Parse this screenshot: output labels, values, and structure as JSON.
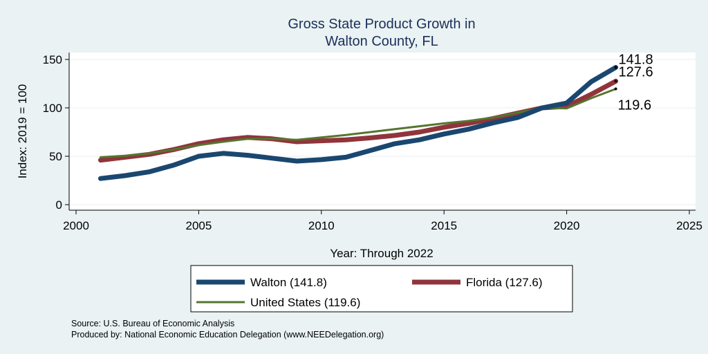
{
  "colors": {
    "background": "#eaf2f3",
    "plot_background": "#ffffff",
    "title": "#1a2f5a",
    "grid": "#e8eef0",
    "walton": "#1a476f",
    "florida": "#90353b",
    "united_states": "#55752f"
  },
  "footer": {
    "source": "Source: U.S. Bureau of Economic Analysis",
    "produced": "Produced by: National Economic Education Delegation (www.NEEDelegation.org)"
  },
  "chart_data": {
    "type": "line",
    "title": "Gross State Product Growth in",
    "subtitle": "Walton County, FL",
    "xlabel": "Year: Through 2022",
    "ylabel": "Index: 2019 = 100",
    "xlim": [
      2000,
      2025
    ],
    "ylim": [
      0,
      150
    ],
    "xticks": [
      2000,
      2005,
      2010,
      2015,
      2020,
      2025
    ],
    "yticks": [
      0,
      50,
      100,
      150
    ],
    "grid": true,
    "legend_position": "bottom",
    "x": [
      2001,
      2002,
      2003,
      2004,
      2005,
      2006,
      2007,
      2008,
      2009,
      2010,
      2011,
      2012,
      2013,
      2014,
      2015,
      2016,
      2017,
      2018,
      2019,
      2020,
      2021,
      2022
    ],
    "series": [
      {
        "name": "Walton  (141.8)",
        "color": "#1a476f",
        "values": [
          27,
          30,
          34,
          41,
          50,
          53,
          51,
          48,
          45,
          46.5,
          49,
          56,
          63,
          67,
          73,
          78,
          84.5,
          90,
          100,
          105,
          127,
          141.8
        ],
        "end_label": "141.8"
      },
      {
        "name": "Florida (127.6)",
        "color": "#90353b",
        "values": [
          46,
          49,
          52,
          57,
          63,
          67,
          69.5,
          68,
          65,
          66,
          67,
          69,
          71.5,
          75,
          80,
          84,
          89,
          94.5,
          100,
          101.5,
          114,
          127.6
        ],
        "end_label": "127.6"
      },
      {
        "name": "United States (119.6)",
        "color": "#55752f",
        "values": [
          49,
          50.5,
          53,
          57,
          61.5,
          65,
          68,
          68,
          67,
          69.5,
          72,
          75,
          78,
          81,
          84,
          86.5,
          90,
          95,
          100,
          99.5,
          110,
          119.6
        ],
        "end_label": "119.6"
      }
    ]
  }
}
